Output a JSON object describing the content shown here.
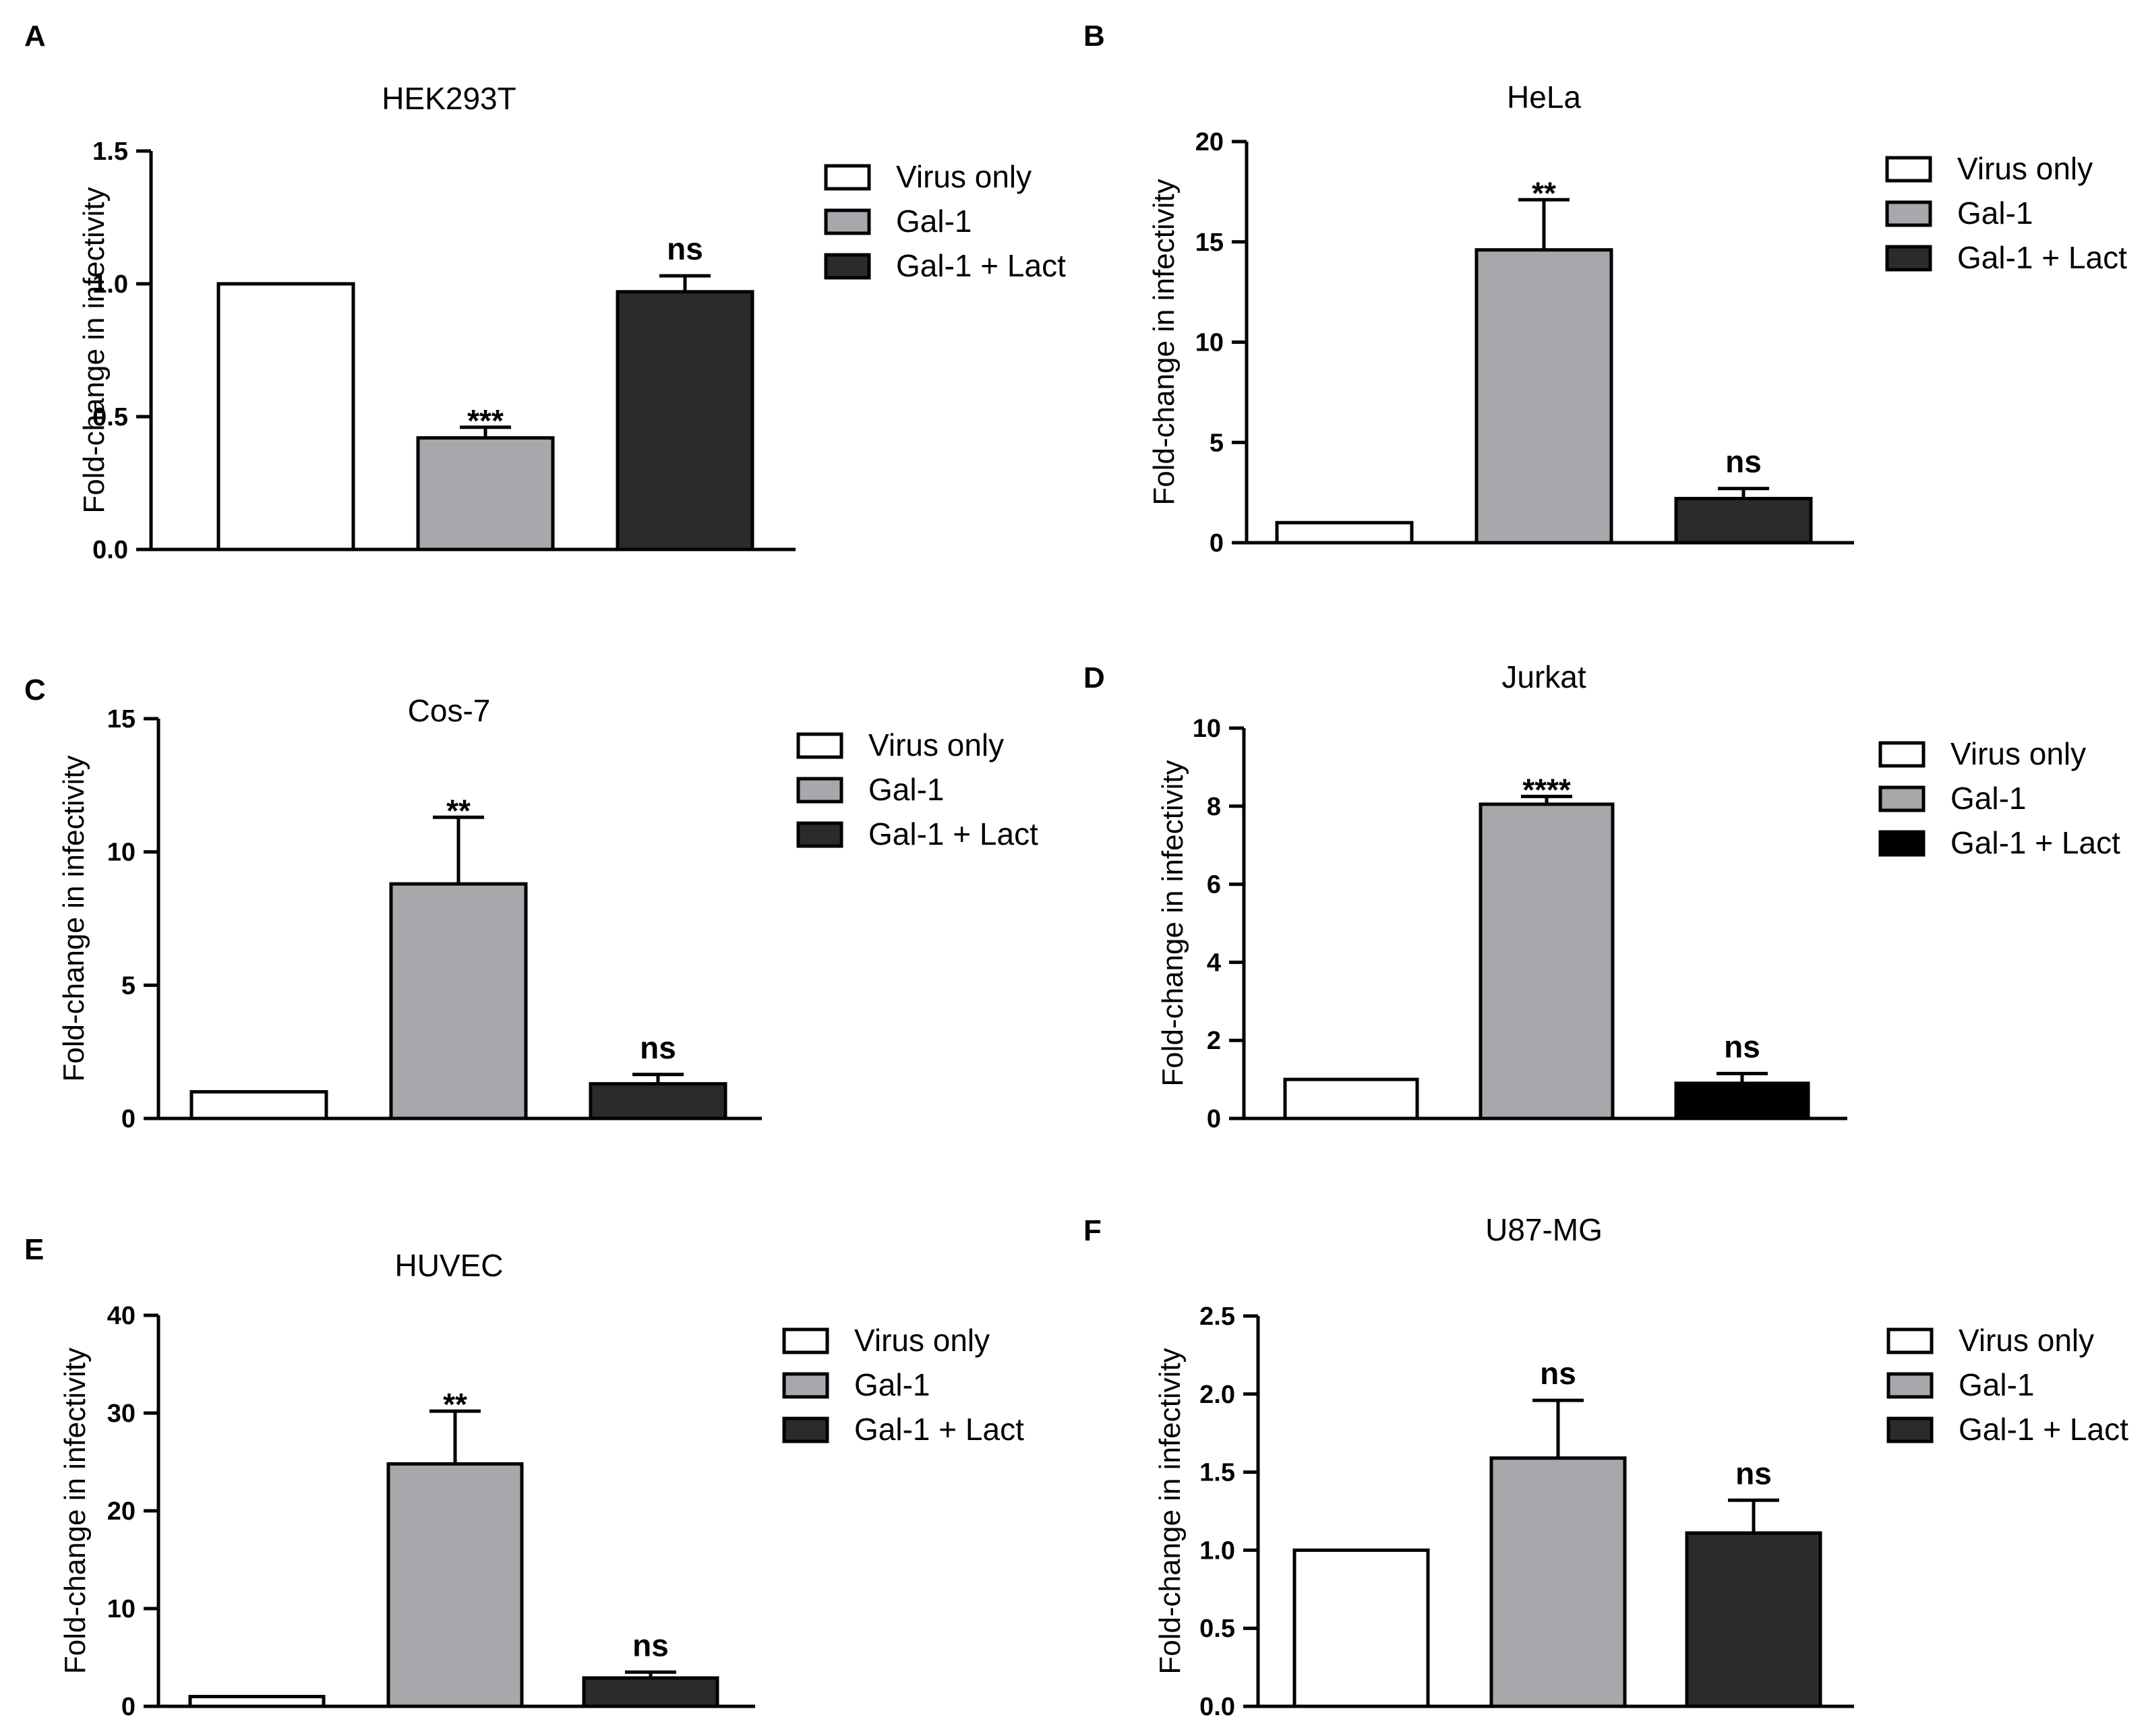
{
  "figure": {
    "colors": {
      "virus_only": "#ffffff",
      "gal1": "#a7a7ac",
      "gal1_lact": "#2b2b2b",
      "gal1_lact_jurkat": "#000000"
    }
  },
  "chart_data": [
    {
      "panel": "A",
      "type": "bar",
      "title": "HEK293T",
      "ylabel": "Fold-change in infectivity",
      "xlabel": "",
      "ylim": [
        0,
        1.5
      ],
      "yticks": [
        "0.0",
        "0.5",
        "1.0",
        "1.5"
      ],
      "categories": [
        "Virus only",
        "Gal-1",
        "Gal-1 + Lact"
      ],
      "values": [
        1.0,
        0.42,
        0.97
      ],
      "errors": [
        0,
        0.04,
        0.06
      ],
      "significance": [
        "",
        "***",
        "ns"
      ],
      "legend": [
        "Virus only",
        "Gal-1",
        "Gal-1 + Lact"
      ],
      "colors": [
        "#ffffff",
        "#a7a7ac",
        "#2b2b2b"
      ]
    },
    {
      "panel": "B",
      "type": "bar",
      "title": "HeLa",
      "ylabel": "Fold-change in infectivity",
      "xlabel": "",
      "ylim": [
        0,
        20
      ],
      "yticks": [
        "0",
        "5",
        "10",
        "15",
        "20"
      ],
      "categories": [
        "Virus only",
        "Gal-1",
        "Gal-1 + Lact"
      ],
      "values": [
        1.0,
        14.6,
        2.2
      ],
      "errors": [
        0,
        2.5,
        0.5
      ],
      "significance": [
        "",
        "**",
        "ns"
      ],
      "legend": [
        "Virus only",
        "Gal-1",
        "Gal-1 + Lact"
      ],
      "colors": [
        "#ffffff",
        "#a7a7ac",
        "#2b2b2b"
      ]
    },
    {
      "panel": "C",
      "type": "bar",
      "title": "Cos-7",
      "ylabel": "Fold-change in infectivity",
      "xlabel": "",
      "ylim": [
        0,
        15
      ],
      "yticks": [
        "0",
        "5",
        "10",
        "15"
      ],
      "categories": [
        "Virus only",
        "Gal-1",
        "Gal-1 + Lact"
      ],
      "values": [
        1.0,
        8.8,
        1.3
      ],
      "errors": [
        0,
        2.5,
        0.35
      ],
      "significance": [
        "",
        "**",
        "ns"
      ],
      "legend": [
        "Virus only",
        "Gal-1",
        "Gal-1 + Lact"
      ],
      "colors": [
        "#ffffff",
        "#a7a7ac",
        "#2b2b2b"
      ]
    },
    {
      "panel": "D",
      "type": "bar",
      "title": "Jurkat",
      "ylabel": "Fold-change in infectivity",
      "xlabel": "",
      "ylim": [
        0,
        10
      ],
      "yticks": [
        "0",
        "2",
        "4",
        "6",
        "8",
        "10"
      ],
      "categories": [
        "Virus only",
        "Gal-1",
        "Gal-1 + Lact"
      ],
      "values": [
        1.0,
        8.05,
        0.9
      ],
      "errors": [
        0,
        0.2,
        0.25
      ],
      "significance": [
        "",
        "****",
        "ns"
      ],
      "legend": [
        "Virus only",
        "Gal-1",
        "Gal-1 + Lact"
      ],
      "colors": [
        "#ffffff",
        "#a7a7ac",
        "#000000"
      ]
    },
    {
      "panel": "E",
      "type": "bar",
      "title": "HUVEC",
      "ylabel": "Fold-change in infectivity",
      "xlabel": "",
      "ylim": [
        0,
        40
      ],
      "yticks": [
        "0",
        "10",
        "20",
        "30",
        "40"
      ],
      "categories": [
        "Virus only",
        "Gal-1",
        "Gal-1 + Lact"
      ],
      "values": [
        1.0,
        24.8,
        2.9
      ],
      "errors": [
        0,
        5.4,
        0.6
      ],
      "significance": [
        "",
        "**",
        "ns"
      ],
      "legend": [
        "Virus only",
        "Gal-1",
        "Gal-1 + Lact"
      ],
      "colors": [
        "#ffffff",
        "#a7a7ac",
        "#2b2b2b"
      ]
    },
    {
      "panel": "F",
      "type": "bar",
      "title": "U87-MG",
      "ylabel": "Fold-change in infectivity",
      "xlabel": "",
      "ylim": [
        0,
        2.5
      ],
      "yticks": [
        "0.0",
        "0.5",
        "1.0",
        "1.5",
        "2.0",
        "2.5"
      ],
      "categories": [
        "Virus only",
        "Gal-1",
        "Gal-1 + Lact"
      ],
      "values": [
        1.0,
        1.59,
        1.11
      ],
      "errors": [
        0,
        0.37,
        0.21
      ],
      "significance": [
        "",
        "ns",
        "ns"
      ],
      "legend": [
        "Virus only",
        "Gal-1",
        "Gal-1 + Lact"
      ],
      "colors": [
        "#ffffff",
        "#a7a7ac",
        "#2b2b2b"
      ]
    }
  ]
}
